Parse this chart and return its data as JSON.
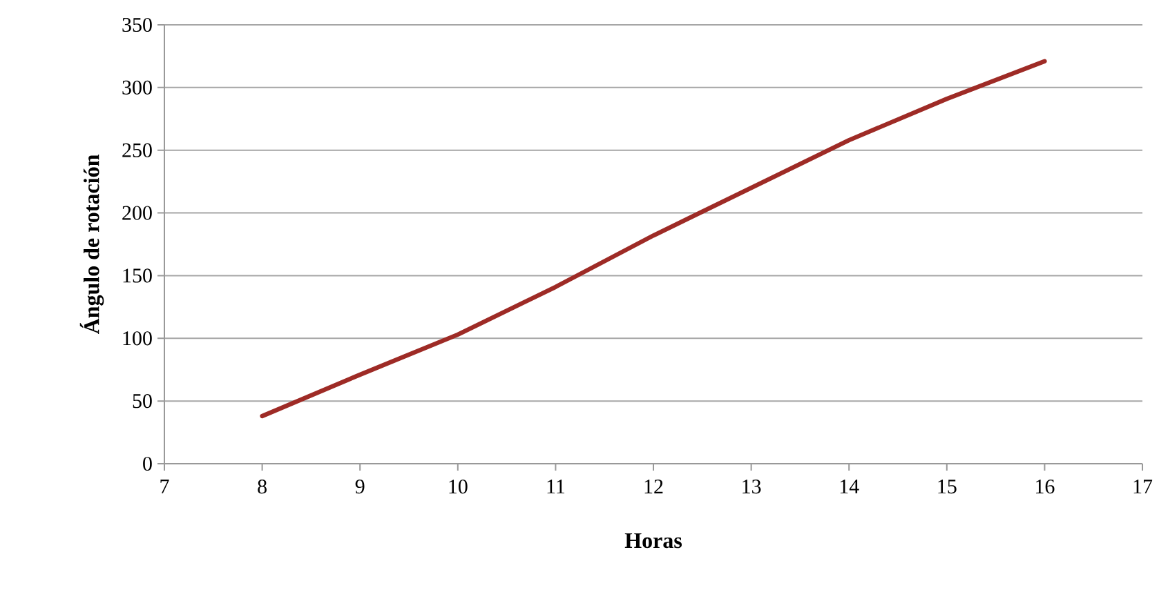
{
  "chart_data": {
    "type": "line",
    "xlabel": "Horas",
    "ylabel": "Ángulo de rotación",
    "x": [
      8,
      9,
      10,
      11,
      12,
      13,
      14,
      15,
      16
    ],
    "series": [
      {
        "color": "#9e2b26",
        "values": [
          38,
          71,
          103,
          141,
          182,
          220,
          258,
          291,
          321
        ]
      }
    ],
    "xlim": [
      7,
      17
    ],
    "ylim": [
      0,
      350
    ],
    "xticks": [
      7,
      8,
      9,
      10,
      11,
      12,
      13,
      14,
      15,
      16,
      17
    ],
    "yticks": [
      0,
      50,
      100,
      150,
      200,
      250,
      300,
      350
    ],
    "grid": "y"
  }
}
